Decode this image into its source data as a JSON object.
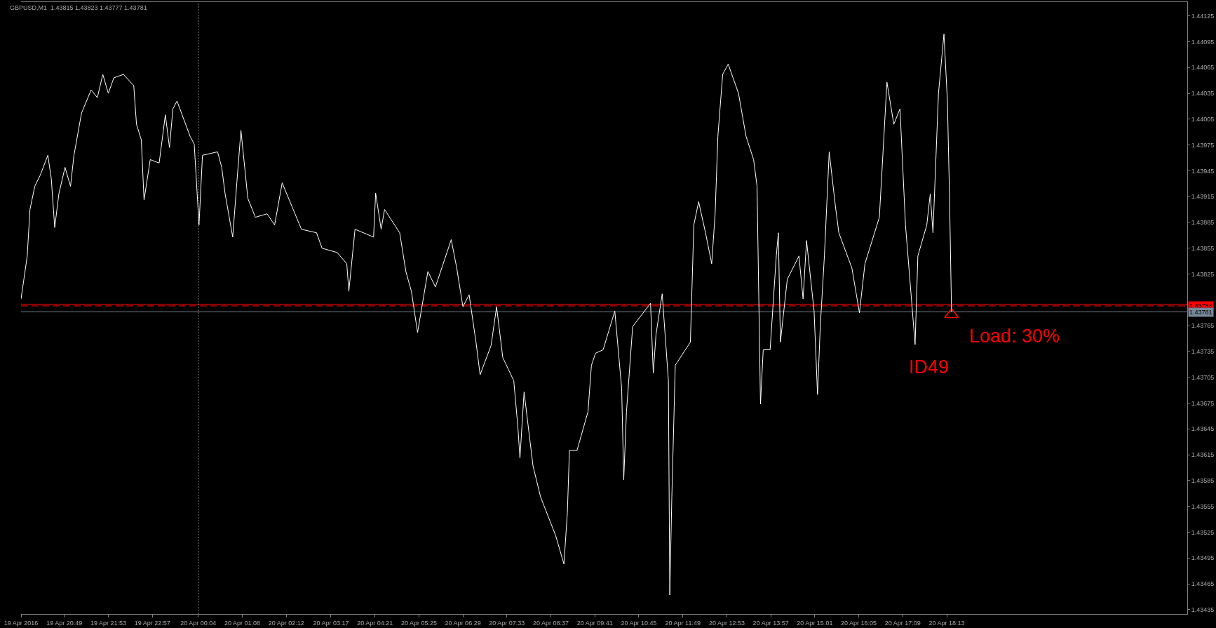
{
  "chart_data": {
    "type": "line",
    "title": "GBPUSD,M1  1.43815 1.43823 1.43777 1.43781",
    "x": [
      "2016-04-19T19:46",
      "2016-04-19T19:55",
      "2016-04-19T19:59",
      "2016-04-19T20:06",
      "2016-04-19T20:14",
      "2016-04-19T20:25",
      "2016-04-19T20:30",
      "2016-04-19T20:35",
      "2016-04-19T20:41",
      "2016-04-19T20:50",
      "2016-04-19T20:58",
      "2016-04-19T21:03",
      "2016-04-19T21:14",
      "2016-04-19T21:28",
      "2016-04-19T21:37",
      "2016-04-19T21:45",
      "2016-04-19T21:53",
      "2016-04-19T22:01",
      "2016-04-19T22:15",
      "2016-04-19T22:30",
      "2016-04-19T22:34",
      "2016-04-19T22:41",
      "2016-04-19T22:45",
      "2016-04-19T22:54",
      "2016-04-19T23:07",
      "2016-04-19T23:16",
      "2016-04-19T23:22",
      "2016-04-19T23:27",
      "2016-04-19T23:33",
      "2016-04-19T23:52",
      "2016-04-19T23:58",
      "2016-04-20T00:05",
      "2016-04-20T00:10",
      "2016-04-20T00:32",
      "2016-04-20T00:38",
      "2016-04-20T00:43",
      "2016-04-20T00:54",
      "2016-04-20T01:00",
      "2016-04-20T01:06",
      "2016-04-20T01:16",
      "2016-04-20T01:27",
      "2016-04-20T01:44",
      "2016-04-20T01:55",
      "2016-04-20T02:06",
      "2016-04-20T02:34",
      "2016-04-20T02:56",
      "2016-04-20T03:04",
      "2016-04-20T03:26",
      "2016-04-20T03:40",
      "2016-04-20T03:43",
      "2016-04-20T03:52",
      "2016-04-20T04:19",
      "2016-04-20T04:22",
      "2016-04-20T04:30",
      "2016-04-20T04:35",
      "2016-04-20T04:57",
      "2016-04-20T05:06",
      "2016-04-20T05:14",
      "2016-04-20T05:23",
      "2016-04-20T05:38",
      "2016-04-20T05:49",
      "2016-04-20T06:12",
      "2016-04-20T06:20",
      "2016-04-20T06:29",
      "2016-04-20T06:38",
      "2016-04-20T06:48",
      "2016-04-20T06:54",
      "2016-04-20T07:10",
      "2016-04-20T07:18",
      "2016-04-20T07:27",
      "2016-04-20T07:43",
      "2016-04-20T07:49",
      "2016-04-20T07:52",
      "2016-04-20T07:58",
      "2016-04-20T08:11",
      "2016-04-20T08:22",
      "2016-04-20T08:44",
      "2016-04-20T08:56",
      "2016-04-20T09:01",
      "2016-04-20T09:04",
      "2016-04-20T09:15",
      "2016-04-20T09:31",
      "2016-04-20T09:36",
      "2016-04-20T09:42",
      "2016-04-20T09:53",
      "2016-04-20T10:10",
      "2016-04-20T10:20",
      "2016-04-20T10:23",
      "2016-04-20T10:27",
      "2016-04-20T10:36",
      "2016-04-20T11:02",
      "2016-04-20T11:06",
      "2016-04-20T11:10",
      "2016-04-20T11:19",
      "2016-04-20T11:28",
      "2016-04-20T11:30",
      "2016-04-20T11:33",
      "2016-04-20T11:38",
      "2016-04-20T12:00",
      "2016-04-20T12:05",
      "2016-04-20T12:12",
      "2016-04-20T12:22",
      "2016-04-20T12:31",
      "2016-04-20T12:36",
      "2016-04-20T12:40",
      "2016-04-20T12:47",
      "2016-04-20T12:55",
      "2016-04-20T13:10",
      "2016-04-20T13:21",
      "2016-04-20T13:32",
      "2016-04-20T13:37",
      "2016-04-20T13:42",
      "2016-04-20T13:46",
      "2016-04-20T13:56",
      "2016-04-20T14:05",
      "2016-04-20T14:08",
      "2016-04-20T14:11",
      "2016-04-20T14:21",
      "2016-04-20T14:38",
      "2016-04-20T14:44",
      "2016-04-20T14:49",
      "2016-04-20T15:00",
      "2016-04-20T15:05",
      "2016-04-20T15:09",
      "2016-04-20T15:15",
      "2016-04-20T15:22",
      "2016-04-20T15:31",
      "2016-04-20T15:36",
      "2016-04-20T15:55",
      "2016-04-20T16:06",
      "2016-04-20T16:14",
      "2016-04-20T16:35",
      "2016-04-20T16:46",
      "2016-04-20T16:56",
      "2016-04-20T17:05",
      "2016-04-20T17:13",
      "2016-04-20T17:27",
      "2016-04-20T17:31",
      "2016-04-20T17:44",
      "2016-04-20T17:49",
      "2016-04-20T17:53",
      "2016-04-20T18:01",
      "2016-04-20T18:09",
      "2016-04-20T18:14",
      "2016-04-20T18:17",
      "2016-04-20T18:20"
    ],
    "series": [
      {
        "color": "#ffffff",
        "values": [
          1.43796,
          1.43846,
          1.439,
          1.43927,
          1.4394,
          1.43963,
          1.43936,
          1.43879,
          1.43918,
          1.43949,
          1.43927,
          1.43963,
          1.44012,
          1.44039,
          1.4403,
          1.44057,
          1.44035,
          1.44053,
          1.44057,
          1.44044,
          1.43999,
          1.43981,
          1.43911,
          1.43958,
          1.43954,
          1.4401,
          1.43972,
          1.44017,
          1.44026,
          1.43985,
          1.43976,
          1.43882,
          1.43963,
          1.43967,
          1.43949,
          1.43918,
          1.43868,
          1.43931,
          1.43992,
          1.43913,
          1.43891,
          1.43895,
          1.43882,
          1.43931,
          1.43877,
          1.43873,
          1.43855,
          1.4385,
          1.43837,
          1.43805,
          1.43877,
          1.43868,
          1.43919,
          1.43877,
          1.439,
          1.43873,
          1.43828,
          1.43805,
          1.43757,
          1.43828,
          1.4381,
          1.43865,
          1.43832,
          1.43787,
          1.43801,
          1.43746,
          1.43708,
          1.43742,
          1.43787,
          1.43728,
          1.43701,
          1.43647,
          1.43611,
          1.43688,
          1.43602,
          1.43566,
          1.43521,
          1.43488,
          1.43548,
          1.4362,
          1.4362,
          1.43665,
          1.43719,
          1.43733,
          1.43737,
          1.43782,
          1.43692,
          1.43586,
          1.43665,
          1.43764,
          1.43791,
          1.4371,
          1.43755,
          1.43802,
          1.43701,
          1.43452,
          1.43566,
          1.43719,
          1.43746,
          1.43882,
          1.43909,
          1.43873,
          1.43837,
          1.43895,
          1.43985,
          1.44057,
          1.44069,
          1.44035,
          1.43985,
          1.43958,
          1.43927,
          1.43674,
          1.43737,
          1.43737,
          1.43846,
          1.43873,
          1.43746,
          1.43819,
          1.43846,
          1.43796,
          1.43864,
          1.43782,
          1.43685,
          1.43764,
          1.43846,
          1.43967,
          1.43904,
          1.43873,
          1.43832,
          1.4378,
          1.43837,
          1.43891,
          1.44048,
          1.43999,
          1.44017,
          1.43882,
          1.43743,
          1.43846,
          1.43882,
          1.43918,
          1.43873,
          1.44035,
          1.44104,
          1.44026,
          1.43918,
          1.43781
        ]
      },
      {
        "type": "scatter",
        "color": "#ff0000",
        "marker": "triangle",
        "x": [
          "2016-04-20T18:20"
        ],
        "values": [
          1.43778
        ]
      }
    ],
    "xlim": [
      "2016-04-19T19:46",
      "2016-04-21T00:03"
    ],
    "xticks": [
      {
        "value": "2016-04-19T19:46",
        "label": "19 Apr 2016"
      },
      {
        "value": "2016-04-19T20:49",
        "label": "19 Apr 20:49"
      },
      {
        "value": "2016-04-19T21:53",
        "label": "19 Apr 21:53"
      },
      {
        "value": "2016-04-19T22:57",
        "label": "19 Apr 22:57"
      },
      {
        "value": "2016-04-20T00:04",
        "label": "20 Apr 00:04"
      },
      {
        "value": "2016-04-20T01:08",
        "label": "20 Apr 01:08"
      },
      {
        "value": "2016-04-20T02:12",
        "label": "20 Apr 02:12"
      },
      {
        "value": "2016-04-20T03:17",
        "label": "20 Apr 03:17"
      },
      {
        "value": "2016-04-20T04:21",
        "label": "20 Apr 04:21"
      },
      {
        "value": "2016-04-20T05:25",
        "label": "20 Apr 05:25"
      },
      {
        "value": "2016-04-20T06:29",
        "label": "20 Apr 06:29"
      },
      {
        "value": "2016-04-20T07:33",
        "label": "20 Apr 07:33"
      },
      {
        "value": "2016-04-20T08:37",
        "label": "20 Apr 08:37"
      },
      {
        "value": "2016-04-20T09:41",
        "label": "20 Apr 09:41"
      },
      {
        "value": "2016-04-20T10:45",
        "label": "20 Apr 10:45"
      },
      {
        "value": "2016-04-20T11:49",
        "label": "20 Apr 11:49"
      },
      {
        "value": "2016-04-20T12:53",
        "label": "20 Apr 12:53"
      },
      {
        "value": "2016-04-20T13:57",
        "label": "20 Apr 13:57"
      },
      {
        "value": "2016-04-20T15:01",
        "label": "20 Apr 15:01"
      },
      {
        "value": "2016-04-20T16:05",
        "label": "20 Apr 16:05"
      },
      {
        "value": "2016-04-20T17:09",
        "label": "20 Apr 17:09"
      },
      {
        "value": "2016-04-20T18:13",
        "label": "20 Apr 18:13"
      }
    ],
    "ylim": [
      1.4343,
      1.44141
    ],
    "yticks": [
      1.43435,
      1.43465,
      1.43495,
      1.43525,
      1.43555,
      1.43585,
      1.43615,
      1.43645,
      1.43675,
      1.43705,
      1.43735,
      1.43765,
      1.43825,
      1.43855,
      1.43885,
      1.43915,
      1.43945,
      1.43975,
      1.44005,
      1.44035,
      1.44065,
      1.44095,
      1.44125
    ],
    "ref_lines": [
      {
        "axis": "y",
        "value": 1.4379,
        "color": "#ff0000",
        "line_style": "solid"
      },
      {
        "axis": "y",
        "value": 1.43788,
        "label": "1.43788",
        "color": "#ff0000",
        "line_style": "dashed"
      },
      {
        "axis": "y",
        "value": 1.43781,
        "label": "1.43781",
        "color": "#778899",
        "line_style": "solid"
      },
      {
        "axis": "x",
        "value": "2016-04-20T00:04",
        "color": "#808080",
        "line_style": "dotted"
      }
    ],
    "annotations": [
      "ID49",
      {
        "text": "Load: 30%",
        "x": "2016-04-20T18:20",
        "y": 1.43787
      }
    ],
    "grid": false
  }
}
